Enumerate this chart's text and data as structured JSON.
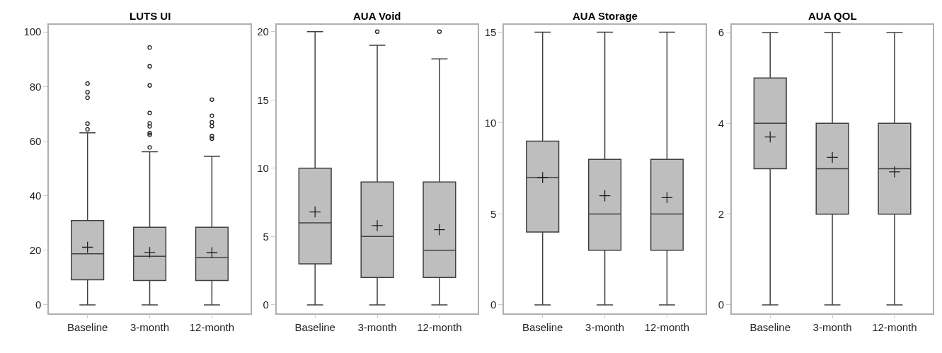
{
  "chart_data": [
    {
      "type": "box",
      "title": "LUTS UI",
      "categories": [
        "Baseline",
        "3-month",
        "12-month"
      ],
      "color": "#bebebe",
      "ylim": [
        -3,
        102.6
      ],
      "yticks": [
        0,
        20,
        40,
        60,
        80,
        100
      ],
      "boxes": [
        {
          "low": 0,
          "q1": 9.2,
          "median": 18.7,
          "q3": 30.9,
          "high": 63,
          "mean": 21.1,
          "outliers": [
            64.3,
            66.4,
            75.9,
            77.9,
            81.1
          ]
        },
        {
          "low": 0,
          "q1": 8.9,
          "median": 17.8,
          "q3": 28.4,
          "high": 56.1,
          "mean": 19.2,
          "outliers": [
            57.7,
            62.3,
            62.9,
            65.4,
            66.5,
            70.3,
            80.4,
            87.4,
            94.3
          ]
        },
        {
          "low": 0,
          "q1": 8.9,
          "median": 17.3,
          "q3": 28.4,
          "high": 54.4,
          "mean": 19.1,
          "outliers": [
            60.9,
            61.8,
            65.5,
            66.9,
            69.3,
            75.2
          ]
        }
      ]
    },
    {
      "type": "box",
      "title": "AUA Void",
      "categories": [
        "Baseline",
        "3-month",
        "12-month"
      ],
      "color": "#bebebe",
      "ylim": [
        -0.6,
        20.5
      ],
      "yticks": [
        0,
        5,
        10,
        15,
        20
      ],
      "boxes": [
        {
          "low": 0,
          "q1": 3,
          "median": 6,
          "q3": 10,
          "high": 20,
          "mean": 6.8
        },
        {
          "low": 0,
          "q1": 2,
          "median": 5,
          "q3": 9,
          "high": 19,
          "mean": 5.8,
          "outliers": [
            20
          ]
        },
        {
          "low": 0,
          "q1": 2,
          "median": 4,
          "q3": 9,
          "high": 18,
          "mean": 5.5,
          "outliers": [
            20
          ]
        }
      ]
    },
    {
      "type": "box",
      "title": "AUA Storage",
      "categories": [
        "Baseline",
        "3-month",
        "12-month"
      ],
      "color": "#bebebe",
      "ylim": [
        -0.45,
        15.4
      ],
      "yticks": [
        0,
        5,
        10,
        15
      ],
      "boxes": [
        {
          "low": 0,
          "q1": 4,
          "median": 7,
          "q3": 9,
          "high": 15,
          "mean": 7.0
        },
        {
          "low": 0,
          "q1": 3,
          "median": 5,
          "q3": 8,
          "high": 15,
          "mean": 6.0
        },
        {
          "low": 0,
          "q1": 3,
          "median": 5,
          "q3": 8,
          "high": 15,
          "mean": 5.9
        }
      ]
    },
    {
      "type": "box",
      "title": "AUA QOL",
      "categories": [
        "Baseline",
        "3-month",
        "12-month"
      ],
      "color": "#bebebe",
      "ylim": [
        -0.18,
        6.17
      ],
      "yticks": [
        0,
        2,
        4,
        6
      ],
      "boxes": [
        {
          "low": 0,
          "q1": 3,
          "median": 4,
          "q3": 5,
          "high": 6,
          "mean": 3.7
        },
        {
          "low": 0,
          "q1": 2,
          "median": 3,
          "q3": 4,
          "high": 6,
          "mean": 3.25
        },
        {
          "low": 0,
          "q1": 2,
          "median": 3,
          "q3": 4,
          "high": 6,
          "mean": 2.93
        }
      ]
    }
  ]
}
